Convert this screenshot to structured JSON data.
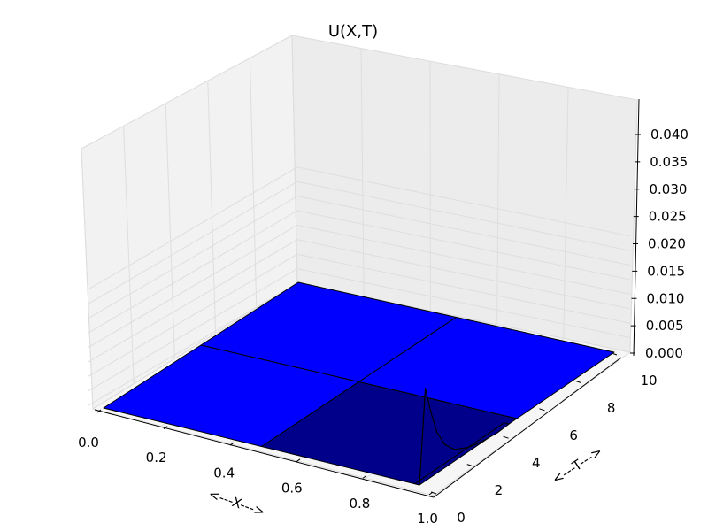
{
  "chart_data": {
    "type": "surface3d",
    "title": "U(X,T)",
    "xlabel": "<---X--->",
    "tlabel": "<---T--->",
    "x_ticks": [
      "0.0",
      "0.2",
      "0.4",
      "0.6",
      "0.8",
      "1.0"
    ],
    "t_ticks": [
      "0",
      "2",
      "4",
      "6",
      "8",
      "10"
    ],
    "z_ticks": [
      "0.000",
      "0.005",
      "0.010",
      "0.015",
      "0.020",
      "0.025",
      "0.030",
      "0.035",
      "0.040"
    ],
    "xlim": [
      0,
      1
    ],
    "tlim": [
      0,
      10
    ],
    "zlim": [
      0,
      0.045
    ],
    "grid": true,
    "surface": {
      "x": [
        0.0,
        0.5,
        1.0
      ],
      "t": [
        0.0,
        5.0,
        10.0
      ],
      "u": [
        [
          0.0,
          0.0,
          0.0
        ],
        [
          0.0,
          0.0,
          0.0
        ],
        [
          0.0,
          0.0,
          0.0
        ]
      ],
      "spike": {
        "x": 1.0,
        "t": [
          0.0,
          0.3,
          0.6,
          0.9,
          1.3,
          1.8,
          2.5,
          3.2,
          4.0,
          4.6
        ],
        "u": [
          0.0,
          0.032,
          0.022,
          0.014,
          0.008,
          0.004,
          0.0015,
          0.0003,
          -0.0003,
          0.0
        ]
      },
      "colors": {
        "face_light": "#0000ff",
        "face_dark": "#00008b",
        "edge": "#000000"
      }
    }
  }
}
